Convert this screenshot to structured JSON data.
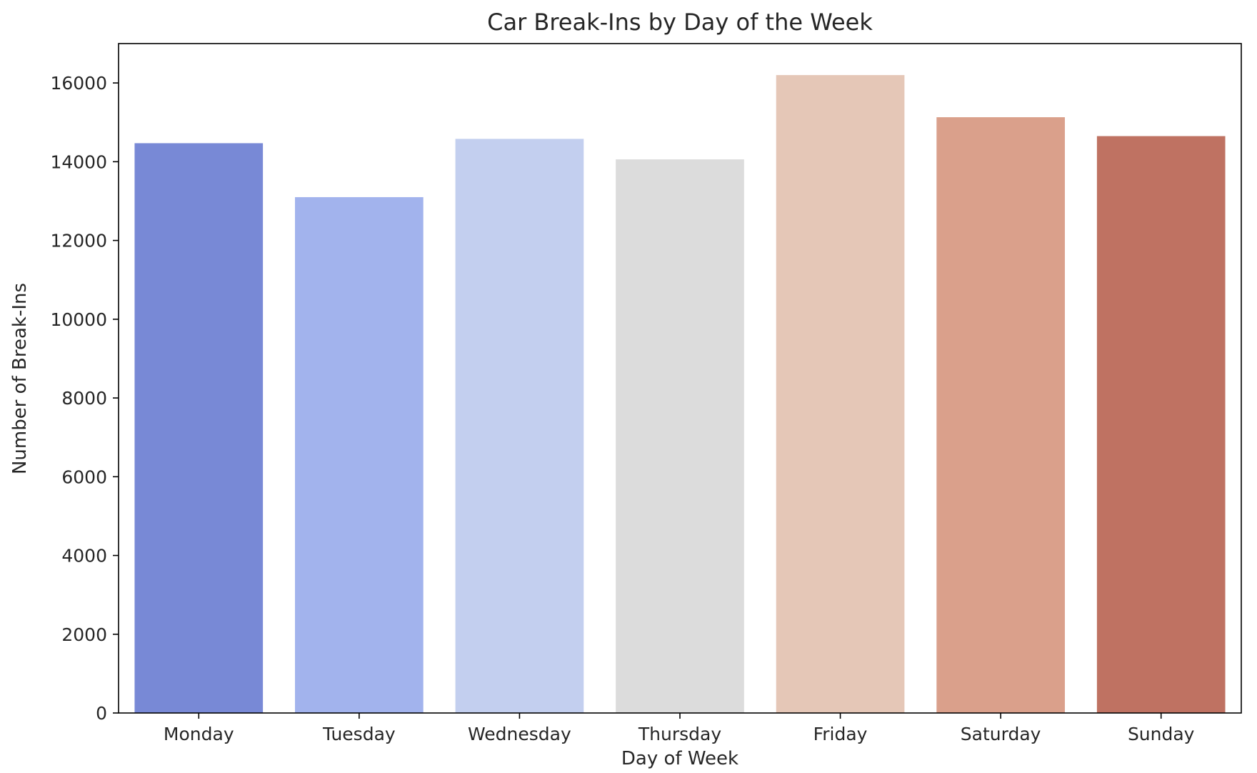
{
  "chart_data": {
    "type": "bar",
    "title": "Car Break-Ins by Day of the Week",
    "xlabel": "Day of Week",
    "ylabel": "Number of Break-Ins",
    "categories": [
      "Monday",
      "Tuesday",
      "Wednesday",
      "Thursday",
      "Friday",
      "Saturday",
      "Sunday"
    ],
    "values": [
      14470,
      13100,
      14580,
      14060,
      16200,
      15130,
      14650
    ],
    "colors": [
      "#7889d6",
      "#a2b3ed",
      "#c3cfef",
      "#dcdcdc",
      "#e5c7b7",
      "#daa08b",
      "#bf7262"
    ],
    "ylim": [
      0,
      17000
    ],
    "yticks": [
      0,
      2000,
      4000,
      6000,
      8000,
      10000,
      12000,
      14000,
      16000
    ],
    "grid": false,
    "legend": "none"
  }
}
